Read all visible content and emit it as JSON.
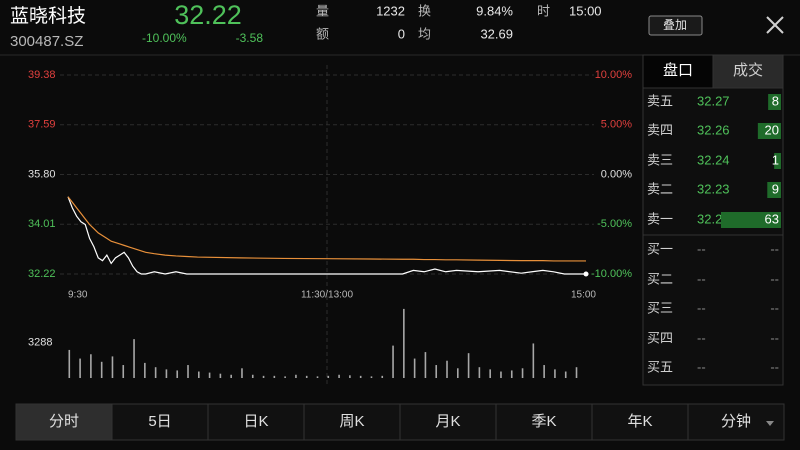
{
  "header": {
    "name": "蓝晓科技",
    "code": "300487.SZ",
    "price": 32.22,
    "change_pct": "-10.00%",
    "change": -3.58,
    "stats": [
      {
        "label": "量",
        "value": 1232
      },
      {
        "label": "额",
        "value": 0
      },
      {
        "label": "换",
        "value": "9.84%"
      },
      {
        "label": "均",
        "value": 32.69
      },
      {
        "label": "时",
        "value": "15:00"
      }
    ],
    "overlay_button": "叠加"
  },
  "chart_data": [
    {
      "type": "line",
      "x": [
        0,
        2,
        4,
        6,
        8,
        10,
        12,
        14,
        16,
        18,
        20,
        22,
        24,
        26,
        28,
        30,
        32,
        34,
        36,
        40,
        45,
        50,
        55,
        60,
        80,
        100,
        120,
        140,
        155,
        160,
        165,
        170,
        175,
        180,
        190,
        200,
        210,
        215,
        220,
        225,
        230,
        235,
        240
      ],
      "series": [
        {
          "color": "#ffffff",
          "values": [
            35.0,
            34.6,
            34.3,
            34.1,
            34.0,
            33.5,
            33.2,
            32.8,
            32.7,
            32.9,
            32.6,
            32.8,
            32.9,
            33.0,
            32.8,
            32.5,
            32.3,
            32.22,
            32.22,
            32.3,
            32.22,
            32.3,
            32.22,
            32.22,
            32.22,
            32.22,
            32.22,
            32.22,
            32.22,
            32.35,
            32.3,
            32.4,
            32.3,
            32.35,
            32.3,
            32.35,
            32.25,
            32.3,
            32.35,
            32.3,
            32.22,
            32.22,
            32.22
          ]
        },
        {
          "color": "#e8903a",
          "values": [
            35.0,
            34.8,
            34.6,
            34.4,
            34.2,
            34.0,
            33.85,
            33.7,
            33.6,
            33.5,
            33.4,
            33.35,
            33.3,
            33.25,
            33.2,
            33.15,
            33.1,
            33.05,
            33.0,
            32.95,
            32.9,
            32.87,
            32.85,
            32.83,
            32.8,
            32.78,
            32.77,
            32.76,
            32.75,
            32.75,
            32.74,
            32.74,
            32.73,
            32.73,
            32.72,
            32.71,
            32.7,
            32.7,
            32.7,
            32.69,
            32.69,
            32.69,
            32.69
          ]
        }
      ],
      "xlim": [
        0,
        240
      ],
      "xticks": [
        {
          "value": 0,
          "label": "9:30"
        },
        {
          "value": 120,
          "label": "11:30/13:00"
        },
        {
          "value": 240,
          "label": "15:00"
        }
      ],
      "ylim": [
        32.22,
        39.38
      ],
      "yticks": [
        32.22,
        34.01,
        {
          "value": 35.8,
          "label": "35.80"
        },
        37.59,
        39.38
      ],
      "y2lim": [
        -10,
        10
      ],
      "y2ticks": [
        {
          "value": -10,
          "label": "-10.00%"
        },
        {
          "value": -5,
          "label": "-5.00%"
        },
        {
          "value": 0,
          "label": "0.00%"
        },
        {
          "value": 5,
          "label": "5.00%"
        },
        {
          "value": 10,
          "label": "10.00%"
        }
      ],
      "grid": true
    },
    {
      "type": "bar",
      "x": [
        0,
        5,
        10,
        15,
        20,
        25,
        30,
        35,
        40,
        45,
        50,
        55,
        60,
        65,
        70,
        75,
        80,
        85,
        90,
        95,
        100,
        105,
        110,
        115,
        120,
        125,
        130,
        135,
        140,
        145,
        150,
        155,
        160,
        165,
        170,
        175,
        180,
        185,
        190,
        195,
        200,
        205,
        210,
        215,
        220,
        225,
        230,
        235
      ],
      "values": [
        2600,
        1800,
        2200,
        1500,
        2000,
        1200,
        3600,
        1400,
        1000,
        800,
        700,
        1200,
        600,
        500,
        400,
        300,
        900,
        300,
        200,
        200,
        150,
        300,
        200,
        150,
        200,
        300,
        250,
        200,
        150,
        200,
        3000,
        6400,
        1800,
        2400,
        1200,
        1600,
        900,
        2300,
        1000,
        800,
        600,
        700,
        900,
        3200,
        1200,
        800,
        600,
        1000
      ],
      "color": "#a8a8a8",
      "xlim": [
        0,
        240
      ],
      "ylim": [
        0,
        6576
      ],
      "yticks": [
        3288
      ]
    }
  ],
  "order_book": {
    "tabs": [
      "盘口",
      "成交"
    ],
    "asks": [
      {
        "label": "卖五",
        "price": 32.27,
        "volume": 8
      },
      {
        "label": "卖四",
        "price": 32.26,
        "volume": 20
      },
      {
        "label": "卖三",
        "price": 32.24,
        "volume": 1
      },
      {
        "label": "卖二",
        "price": 32.23,
        "volume": 9
      },
      {
        "label": "卖一",
        "price": 32.22,
        "volume": 63
      }
    ],
    "bids": [
      {
        "label": "买一",
        "price": "--",
        "volume": "--"
      },
      {
        "label": "买二",
        "price": "--",
        "volume": "--"
      },
      {
        "label": "买三",
        "price": "--",
        "volume": "--"
      },
      {
        "label": "买四",
        "price": "--",
        "volume": "--"
      },
      {
        "label": "买五",
        "price": "--",
        "volume": "--"
      }
    ]
  },
  "period_tabs": [
    "分时",
    "5日",
    "日K",
    "周K",
    "月K",
    "季K",
    "年K",
    "分钟"
  ]
}
